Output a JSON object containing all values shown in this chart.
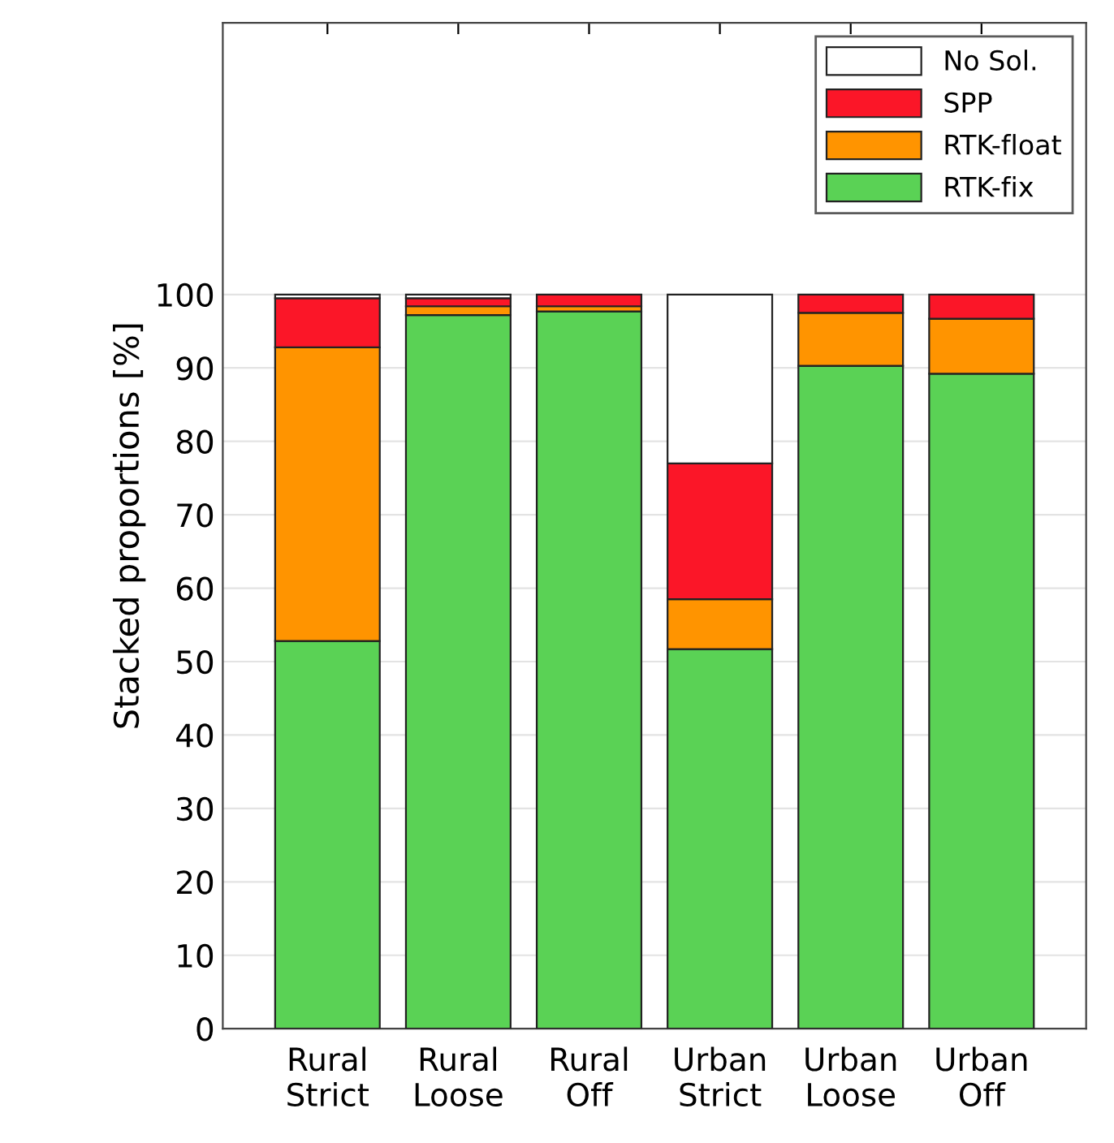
{
  "chart_data": {
    "type": "bar",
    "stacked": true,
    "ylabel": "Stacked proportions [%]",
    "categories": [
      "Rural\nStrict",
      "Rural\nLoose",
      "Rural\nOff",
      "Urban\nStrict",
      "Urban\nLoose",
      "Urban\nOff"
    ],
    "series": [
      {
        "name": "RTK-fix",
        "color": "#5ad255",
        "values": [
          52.8,
          97.2,
          97.7,
          51.7,
          90.3,
          89.2
        ]
      },
      {
        "name": "RTK-float",
        "color": "#ff9400",
        "values": [
          40.0,
          1.2,
          0.7,
          6.8,
          7.2,
          7.5
        ]
      },
      {
        "name": "SPP",
        "color": "#fb1628",
        "values": [
          6.7,
          1.1,
          1.6,
          18.5,
          2.5,
          3.3
        ]
      },
      {
        "name": "No Sol.",
        "color": "#ffffff",
        "values": [
          0.5,
          0.5,
          null,
          23.0,
          null,
          null
        ]
      }
    ],
    "ylim": [
      0,
      137
    ],
    "yticks": [
      0,
      10,
      20,
      30,
      40,
      50,
      60,
      70,
      80,
      90,
      100
    ],
    "grid": "y",
    "legend": "top right"
  }
}
